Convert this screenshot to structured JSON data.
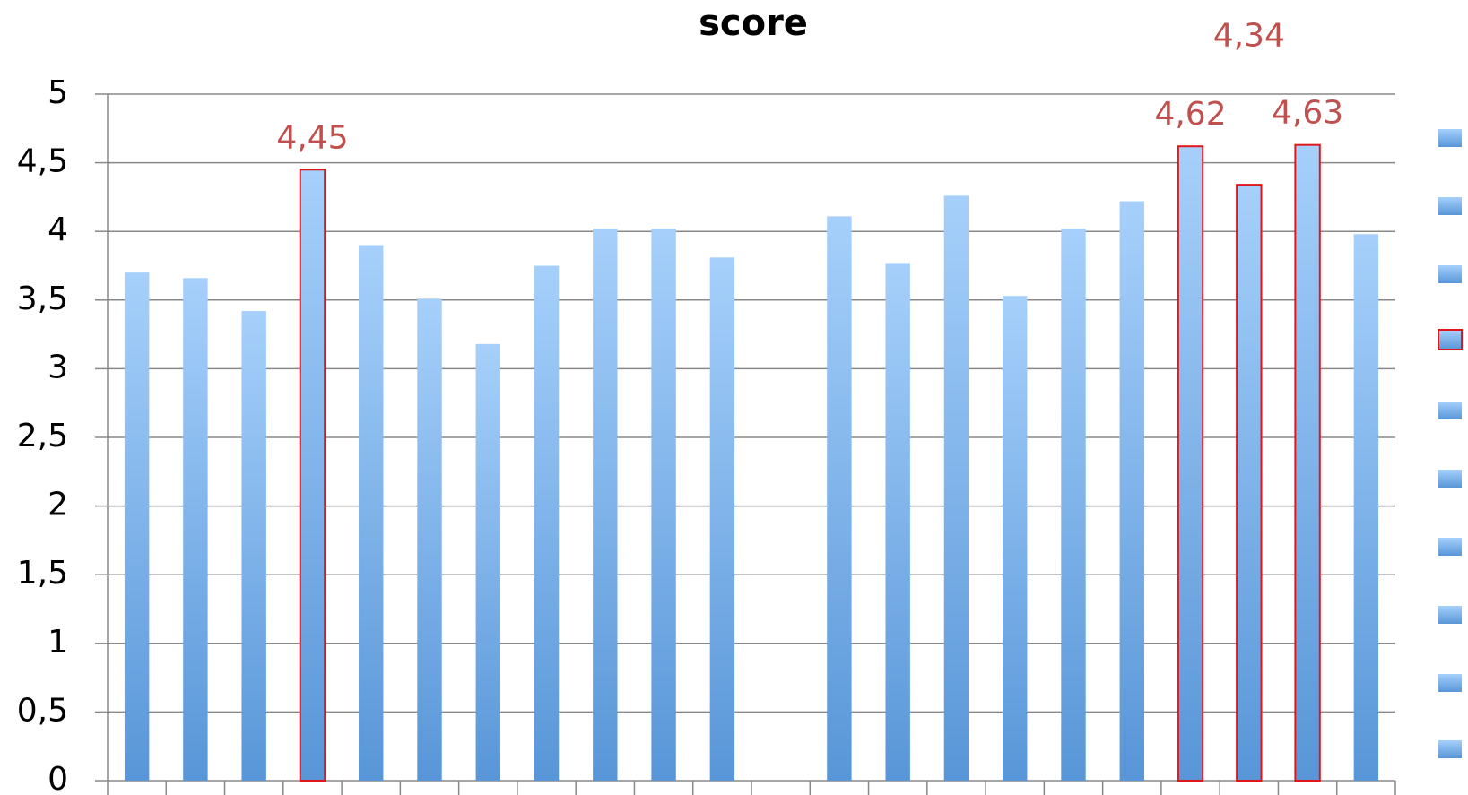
{
  "chart_data": {
    "type": "bar",
    "title": "score",
    "categories": [
      null,
      null,
      null,
      null,
      null,
      null,
      null,
      null,
      null,
      null,
      null,
      null,
      null,
      null,
      null,
      null,
      null,
      null,
      null,
      null,
      null,
      null
    ],
    "values": [
      3.7,
      3.66,
      3.42,
      4.45,
      3.9,
      3.51,
      3.18,
      3.75,
      4.02,
      4.02,
      3.81,
      null,
      4.11,
      3.77,
      4.26,
      3.53,
      4.02,
      4.22,
      4.62,
      4.34,
      4.63,
      3.98
    ],
    "value_labels": [
      null,
      null,
      null,
      "4,45",
      null,
      null,
      null,
      null,
      null,
      null,
      null,
      null,
      null,
      null,
      null,
      null,
      null,
      null,
      "4,62",
      "4,34",
      "4,63",
      null
    ],
    "gradient": [
      "#a6d0fb",
      "#5896d8"
    ],
    "highlight_color": "#e0161b",
    "label_color": "#c0504d",
    "ylim": [
      0,
      5
    ],
    "yticks": [
      0,
      {
        "value": 0.5,
        "label": "0,5"
      },
      1,
      {
        "value": 1.5,
        "label": "1,5"
      },
      2,
      {
        "value": 2.5,
        "label": "2,5"
      },
      3,
      {
        "value": 3.5,
        "label": "3,5"
      },
      4,
      {
        "value": 4.5,
        "label": "4,5"
      },
      5
    ],
    "grid": true
  }
}
